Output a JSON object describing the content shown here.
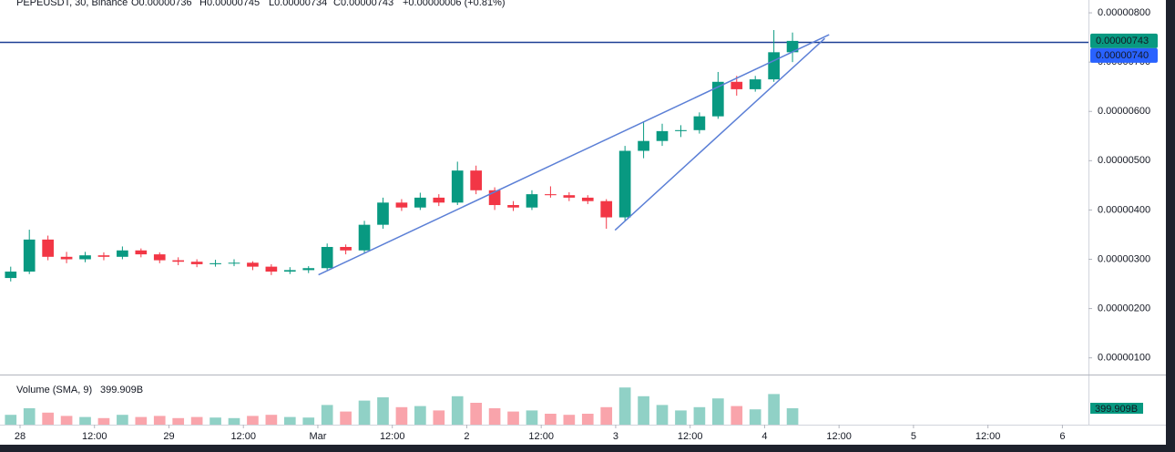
{
  "chart_data": {
    "type": "candlestick",
    "header": {
      "symbol": "PEPEUSDT, 30, Binance",
      "ohlc": [
        "O0.00000736",
        "H0.00000745",
        "L0.00000734",
        "C0.00000743"
      ],
      "change": "+0.00000006 (+0.81%)"
    },
    "x": [
      -1.5,
      1.5,
      4.5,
      7.5,
      10.5,
      13.5,
      16.5,
      19.5,
      22.5,
      25.5,
      28.5,
      31.5,
      34.5,
      37.5,
      40.5,
      43.5,
      46.5,
      49.5,
      52.5,
      55.5,
      58.5,
      61.5,
      64.5,
      67.5,
      70.5,
      73.5,
      76.5,
      79.5,
      82.5,
      85.5,
      88.5,
      91.5,
      94.5,
      97.5,
      100.5,
      103.5,
      106.5,
      109.5,
      112.5,
      115.5,
      118.5,
      121.5,
      124.5
    ],
    "open": [
      2.62e-06,
      2.75e-06,
      3.4e-06,
      3.05e-06,
      3e-06,
      3.08e-06,
      3.05e-06,
      3.18e-06,
      3.1e-06,
      2.98e-06,
      2.95e-06,
      2.9e-06,
      2.92e-06,
      2.93e-06,
      2.85e-06,
      2.75e-06,
      2.78e-06,
      2.82e-06,
      3.25e-06,
      3.18e-06,
      3.7e-06,
      4.15e-06,
      4.05e-06,
      4.25e-06,
      4.15e-06,
      4.8e-06,
      4.4e-06,
      4.1e-06,
      4.05e-06,
      4.32e-06,
      4.3e-06,
      4.25e-06,
      4.18e-06,
      3.85e-06,
      5.2e-06,
      5.4e-06,
      5.6e-06,
      5.62e-06,
      5.9e-06,
      6.6e-06,
      6.45e-06,
      6.65e-06,
      7.2e-06
    ],
    "high": [
      2.85e-06,
      3.6e-06,
      3.48e-06,
      3.15e-06,
      3.15e-06,
      3.14e-06,
      3.26e-06,
      3.22e-06,
      3.14e-06,
      3.04e-06,
      3e-06,
      2.99e-06,
      3e-06,
      2.96e-06,
      2.9e-06,
      2.84e-06,
      2.86e-06,
      3.32e-06,
      3.3e-06,
      3.78e-06,
      4.25e-06,
      4.22e-06,
      4.35e-06,
      4.32e-06,
      4.98e-06,
      4.9e-06,
      4.46e-06,
      4.18e-06,
      4.4e-06,
      4.48e-06,
      4.36e-06,
      4.3e-06,
      4.22e-06,
      5.3e-06,
      5.8e-06,
      5.75e-06,
      5.72e-06,
      5.98e-06,
      6.8e-06,
      6.72e-06,
      6.72e-06,
      7.65e-06,
      7.6e-06
    ],
    "low": [
      2.55e-06,
      2.7e-06,
      2.98e-06,
      2.92e-06,
      2.94e-06,
      2.98e-06,
      3e-06,
      3.04e-06,
      2.92e-06,
      2.88e-06,
      2.84e-06,
      2.85e-06,
      2.86e-06,
      2.78e-06,
      2.68e-06,
      2.7e-06,
      2.72e-06,
      2.78e-06,
      3.1e-06,
      3.12e-06,
      3.62e-06,
      3.98e-06,
      4e-06,
      4.08e-06,
      4.1e-06,
      4.32e-06,
      4e-06,
      3.98e-06,
      4e-06,
      4.25e-06,
      4.18e-06,
      4.12e-06,
      3.62e-06,
      3.78e-06,
      5.05e-06,
      5.3e-06,
      5.48e-06,
      5.55e-06,
      5.85e-06,
      6.32e-06,
      6.4e-06,
      6.6e-06,
      7e-06
    ],
    "close": [
      2.75e-06,
      3.4e-06,
      3.05e-06,
      3e-06,
      3.08e-06,
      3.05e-06,
      3.18e-06,
      3.1e-06,
      2.98e-06,
      2.95e-06,
      2.9e-06,
      2.92e-06,
      2.93e-06,
      2.85e-06,
      2.75e-06,
      2.78e-06,
      2.82e-06,
      3.25e-06,
      3.18e-06,
      3.7e-06,
      4.15e-06,
      4.05e-06,
      4.25e-06,
      4.15e-06,
      4.8e-06,
      4.4e-06,
      4.1e-06,
      4.05e-06,
      4.32e-06,
      4.3e-06,
      4.25e-06,
      4.18e-06,
      3.85e-06,
      5.2e-06,
      5.4e-06,
      5.6e-06,
      5.62e-06,
      5.9e-06,
      6.6e-06,
      6.45e-06,
      6.65e-06,
      7.2e-06,
      7.43e-06
    ],
    "up_color": "#089981",
    "down_color": "#f23645",
    "xlim": [
      -1.76,
      172.2
    ],
    "xticks": [
      {
        "value": 0,
        "label": "28"
      },
      {
        "value": 12,
        "label": "12:00"
      },
      {
        "value": 24,
        "label": "29"
      },
      {
        "value": 36,
        "label": "12:00"
      },
      {
        "value": 48,
        "label": "Mar"
      },
      {
        "value": 60,
        "label": "12:00"
      },
      {
        "value": 72,
        "label": "2"
      },
      {
        "value": 84,
        "label": "12:00"
      },
      {
        "value": 96,
        "label": "3"
      },
      {
        "value": 108,
        "label": "12:00"
      },
      {
        "value": 120,
        "label": "4"
      },
      {
        "value": 132,
        "label": "12:00"
      },
      {
        "value": 144,
        "label": "5"
      },
      {
        "value": 156,
        "label": "12:00"
      },
      {
        "value": 168,
        "label": "6"
      }
    ],
    "ylim": [
      6.8e-07,
      8.26e-06
    ],
    "yticks": [
      {
        "value": 8e-06,
        "label": "0.00000800"
      },
      {
        "value": 7e-06,
        "label": "0.00000700"
      },
      {
        "value": 6e-06,
        "label": "0.00000600"
      },
      {
        "value": 5e-06,
        "label": "0.00000500"
      },
      {
        "value": 4e-06,
        "label": "0.00000400"
      },
      {
        "value": 3e-06,
        "label": "0.00000300"
      },
      {
        "value": 2e-06,
        "label": "0.00000200"
      },
      {
        "value": 1e-06,
        "label": "0.00000100"
      }
    ],
    "grid": false,
    "volume": {
      "label": "Volume (SMA, 9)",
      "value_label": "399.909B",
      "ylim": [
        0,
        4000
      ],
      "values": [
        900,
        1500,
        1100,
        800,
        700,
        600,
        900,
        700,
        800,
        600,
        700,
        650,
        600,
        800,
        900,
        700,
        650,
        1800,
        1200,
        2200,
        2500,
        1600,
        1700,
        1300,
        2600,
        2000,
        1500,
        1200,
        1300,
        1000,
        900,
        1000,
        1600,
        3400,
        2600,
        1800,
        1300,
        1600,
        2400,
        1700,
        1400,
        2800,
        1500
      ]
    },
    "last_price": {
      "value": 7.43e-06,
      "label": "0.00000743",
      "color": "#089981"
    },
    "line_price": {
      "value": 7.4e-06,
      "label": "0.00000740",
      "color": "#2962ff"
    },
    "trendlines": [
      {
        "x": [
          48.1,
          130.4
        ],
        "y": [
          2.685e-06,
          7.556e-06
        ],
        "color": "#5b7fd6"
      },
      {
        "x": [
          95.9,
          129.7
        ],
        "y": [
          3.59e-06,
          7.48e-06
        ],
        "color": "#5b7fd6"
      }
    ]
  }
}
